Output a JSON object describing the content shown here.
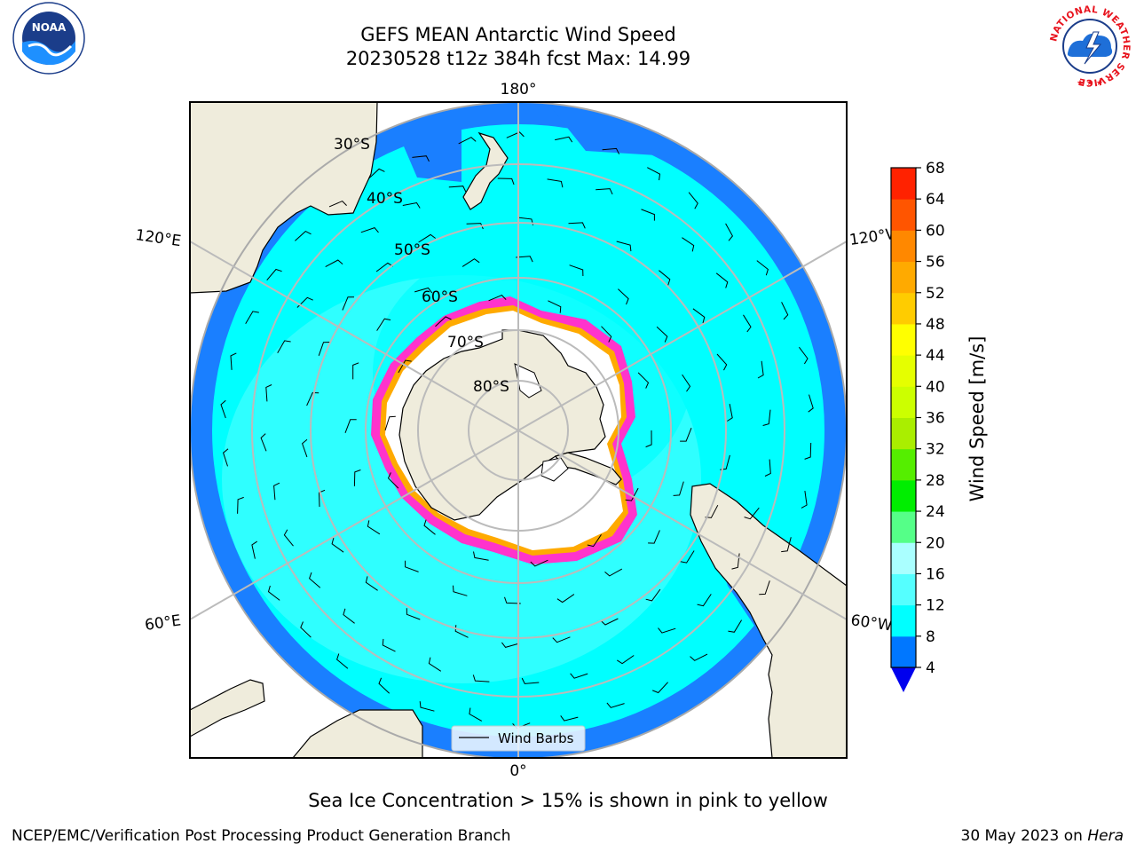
{
  "header": {
    "title": "GEFS MEAN Antarctic Wind Speed",
    "subtitle": "20230528 t12z 384h fcst   Max: 14.99"
  },
  "map": {
    "projection": "south-polar-stereographic",
    "longitude_labels": {
      "top": "180°",
      "bottom": "0°",
      "upper_left": "120°E",
      "upper_right": "120°W",
      "lower_left": "60°E",
      "lower_right": "60°W"
    },
    "latitude_labels": [
      "30°S",
      "40°S",
      "50°S",
      "60°S",
      "70°S",
      "80°S"
    ],
    "legend_label": "Wind Barbs",
    "colors": {
      "land": "#efecdc",
      "ice_shelf": "#ffffff",
      "speed_4_8": "#1a7fff",
      "speed_8_12": "#00ffff",
      "speed_12_16": "#55ffff",
      "sea_ice_edge": [
        "#ff33cc",
        "#ffaa00",
        "#ffee55"
      ],
      "grid": "#bbbbbb"
    }
  },
  "colorbar": {
    "label": "Wind Speed [m/s]",
    "ticks": [
      "4",
      "8",
      "12",
      "16",
      "20",
      "24",
      "28",
      "32",
      "36",
      "40",
      "44",
      "48",
      "52",
      "56",
      "60",
      "64",
      "68"
    ],
    "colors": [
      "#0077ff",
      "#00ffff",
      "#55ffff",
      "#aaffff",
      "#55ff88",
      "#00ee00",
      "#55ee00",
      "#aaee00",
      "#ccff00",
      "#e5ff00",
      "#ffff00",
      "#ffcc00",
      "#ffaa00",
      "#ff8800",
      "#ff5500",
      "#ff2200"
    ],
    "extend_color": "#0000ee"
  },
  "caption": "Sea Ice Concentration > 15% is shown in pink to yellow",
  "footer": {
    "left": "NCEP/EMC/Verification Post Processing Product Generation Branch",
    "right_prefix": "30 May 2023 on ",
    "right_machine": "Hera"
  },
  "logos": {
    "left_name": "NOAA",
    "right_ring_text": "NATIONAL WEATHER SERVICE"
  }
}
